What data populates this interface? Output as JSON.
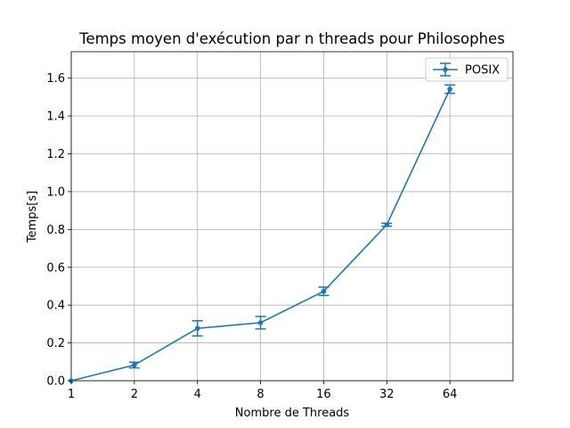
{
  "chart_data": {
    "type": "line",
    "title": "Temps moyen d'exécution par n threads pour Philosophes",
    "xlabel": "Nombre de Threads",
    "ylabel": "Temps[s]",
    "x_scale": "log2",
    "x": [
      1,
      2,
      4,
      8,
      16,
      32,
      64
    ],
    "x_tick_labels": [
      "1",
      "2",
      "4",
      "8",
      "16",
      "32",
      "64"
    ],
    "xlim": [
      1,
      128
    ],
    "ylim": [
      0,
      1.74
    ],
    "y_ticks": [
      0.0,
      0.2,
      0.4,
      0.6,
      0.8,
      1.0,
      1.2,
      1.4,
      1.6
    ],
    "y_tick_labels": [
      "0.0",
      "0.2",
      "0.4",
      "0.6",
      "0.8",
      "1.0",
      "1.2",
      "1.4",
      "1.6"
    ],
    "grid": true,
    "legend_position": "top-right",
    "series": [
      {
        "name": "POSIX",
        "color": "#1f77b4",
        "marker": "point",
        "values": [
          0.0,
          0.083,
          0.277,
          0.307,
          0.473,
          0.825,
          1.542
        ],
        "error": [
          0.0,
          0.015,
          0.04,
          0.033,
          0.022,
          0.008,
          0.022
        ]
      }
    ]
  }
}
